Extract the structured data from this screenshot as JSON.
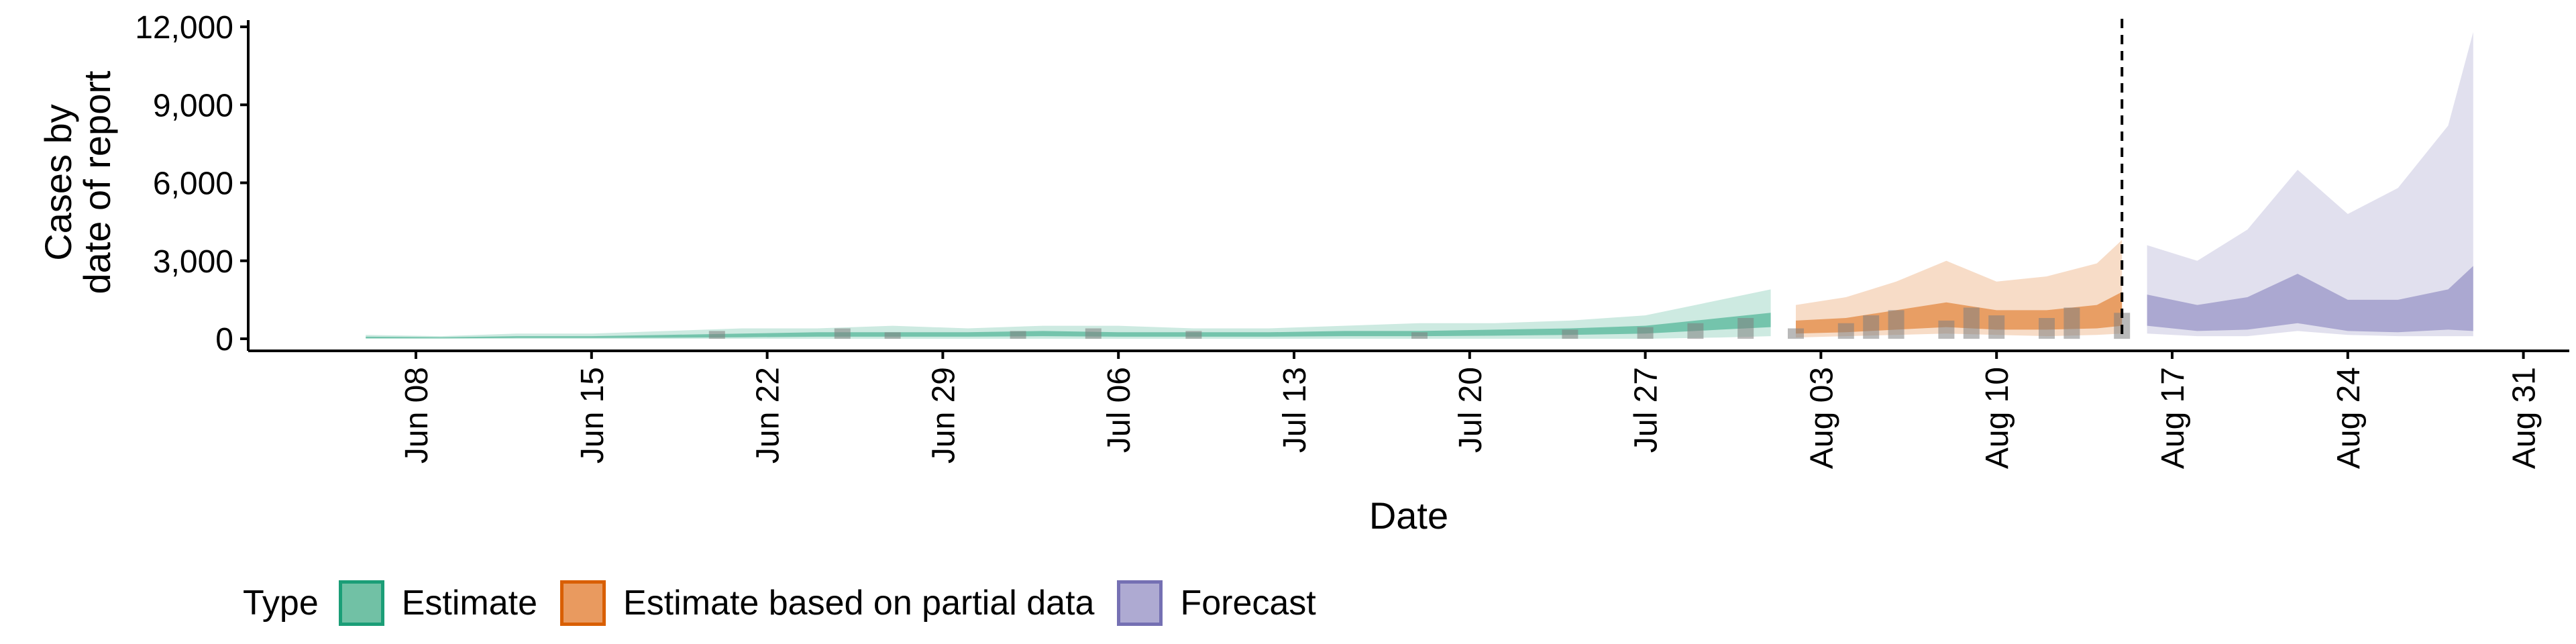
{
  "chart_data": {
    "type": "area",
    "title": "",
    "xlabel": "Date",
    "ylabel": "Cases by\ndate of report",
    "x_range": [
      "2020-06-01",
      "2020-09-01"
    ],
    "ylim": [
      0,
      12000
    ],
    "y_ticks": [
      0,
      3000,
      6000,
      9000,
      12000
    ],
    "y_tick_labels": [
      "0",
      "3,000",
      "6,000",
      "9,000",
      "12,000"
    ],
    "x_ticks": [
      "2020-06-08",
      "2020-06-15",
      "2020-06-22",
      "2020-06-29",
      "2020-07-06",
      "2020-07-13",
      "2020-07-20",
      "2020-07-27",
      "2020-08-03",
      "2020-08-10",
      "2020-08-17",
      "2020-08-24",
      "2020-08-31"
    ],
    "x_tick_labels": [
      "Jun 08",
      "Jun 15",
      "Jun 22",
      "Jun 29",
      "Jul 06",
      "Jul 13",
      "Jul 20",
      "Jul 27",
      "Aug 03",
      "Aug 10",
      "Aug 17",
      "Aug 24",
      "Aug 31"
    ],
    "forecast_date": "2020-08-15",
    "grid": false,
    "legend_title": "Type",
    "legend_position": "bottom",
    "series": [
      {
        "name": "Estimate",
        "color": "#1b9e77",
        "x": [
          "2020-06-06",
          "2020-06-09",
          "2020-06-12",
          "2020-06-15",
          "2020-06-18",
          "2020-06-21",
          "2020-06-24",
          "2020-06-27",
          "2020-06-30",
          "2020-07-03",
          "2020-07-06",
          "2020-07-09",
          "2020-07-12",
          "2020-07-15",
          "2020-07-18",
          "2020-07-21",
          "2020-07-24",
          "2020-07-27",
          "2020-07-30",
          "2020-08-01"
        ],
        "upper_90": [
          150,
          100,
          200,
          200,
          300,
          400,
          400,
          500,
          400,
          500,
          500,
          400,
          400,
          500,
          600,
          600,
          700,
          900,
          1500,
          1900
        ],
        "lower_90": [
          0,
          0,
          0,
          0,
          0,
          0,
          0,
          0,
          0,
          0,
          0,
          0,
          0,
          0,
          0,
          0,
          0,
          0,
          50,
          100
        ],
        "upper_50": [
          80,
          60,
          100,
          100,
          150,
          200,
          250,
          250,
          250,
          300,
          250,
          250,
          250,
          300,
          300,
          350,
          400,
          500,
          800,
          1000
        ],
        "lower_50": [
          20,
          20,
          30,
          30,
          40,
          60,
          80,
          80,
          80,
          100,
          80,
          80,
          80,
          100,
          100,
          120,
          150,
          200,
          350,
          450
        ]
      },
      {
        "name": "Estimate based on partial data",
        "color": "#d95f02",
        "x": [
          "2020-08-02",
          "2020-08-04",
          "2020-08-06",
          "2020-08-08",
          "2020-08-10",
          "2020-08-12",
          "2020-08-14",
          "2020-08-15"
        ],
        "upper_90": [
          1300,
          1600,
          2200,
          3000,
          2200,
          2400,
          2900,
          3800
        ],
        "lower_90": [
          50,
          100,
          150,
          200,
          150,
          100,
          150,
          200
        ],
        "upper_50": [
          700,
          800,
          1100,
          1400,
          1100,
          1100,
          1300,
          1800
        ],
        "lower_50": [
          200,
          250,
          350,
          450,
          350,
          350,
          400,
          500
        ]
      },
      {
        "name": "Forecast",
        "color": "#7570b3",
        "x": [
          "2020-08-16",
          "2020-08-18",
          "2020-08-20",
          "2020-08-22",
          "2020-08-24",
          "2020-08-26",
          "2020-08-28",
          "2020-08-29"
        ],
        "upper_90": [
          3600,
          3000,
          4200,
          6500,
          4800,
          5800,
          8200,
          11800
        ],
        "lower_90": [
          200,
          100,
          100,
          300,
          150,
          100,
          100,
          100
        ],
        "upper_50": [
          1700,
          1300,
          1600,
          2500,
          1500,
          1500,
          1900,
          2800
        ],
        "lower_50": [
          500,
          300,
          350,
          600,
          300,
          250,
          350,
          300
        ]
      }
    ],
    "reported_cases": {
      "color": "#808080",
      "x": [
        "2020-06-20",
        "2020-06-25",
        "2020-06-27",
        "2020-07-02",
        "2020-07-05",
        "2020-07-09",
        "2020-07-18",
        "2020-07-24",
        "2020-07-27",
        "2020-07-29",
        "2020-07-31",
        "2020-08-02",
        "2020-08-04",
        "2020-08-05",
        "2020-08-06",
        "2020-08-08",
        "2020-08-09",
        "2020-08-10",
        "2020-08-12",
        "2020-08-13",
        "2020-08-15"
      ],
      "values": [
        300,
        400,
        250,
        300,
        400,
        300,
        250,
        350,
        450,
        600,
        800,
        400,
        600,
        900,
        1100,
        700,
        1200,
        900,
        800,
        1200,
        1000
      ]
    }
  },
  "legend": {
    "title": "Type",
    "items": [
      {
        "label": "Estimate",
        "color": "#1b9e77",
        "fill": "#71c1a5"
      },
      {
        "label": "Estimate based on partial data",
        "color": "#d95f02",
        "fill": "#e99a5f"
      },
      {
        "label": "Forecast",
        "color": "#7570b3",
        "fill": "#aeaad2"
      }
    ]
  }
}
